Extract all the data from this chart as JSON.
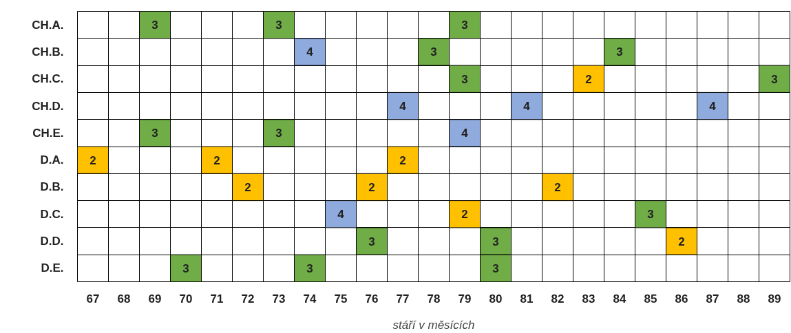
{
  "chart_data": {
    "type": "heatmap",
    "xlabel": "stáří v měsících",
    "categories": [
      "67",
      "68",
      "69",
      "70",
      "71",
      "72",
      "73",
      "74",
      "75",
      "76",
      "77",
      "78",
      "79",
      "80",
      "81",
      "82",
      "83",
      "84",
      "85",
      "86",
      "87",
      "88",
      "89"
    ],
    "y_categories": [
      "CH.A.",
      "CH.B.",
      "CH.C.",
      "CH.D.",
      "CH.E.",
      "D.A.",
      "D.B.",
      "D.C.",
      "D.D.",
      "D.E."
    ],
    "cells": [
      [
        null,
        null,
        3,
        null,
        null,
        null,
        3,
        null,
        null,
        null,
        null,
        null,
        3,
        null,
        null,
        null,
        null,
        null,
        null,
        null,
        null,
        null,
        null
      ],
      [
        null,
        null,
        null,
        null,
        null,
        null,
        null,
        4,
        null,
        null,
        null,
        3,
        null,
        null,
        null,
        null,
        null,
        3,
        null,
        null,
        null,
        null,
        null
      ],
      [
        null,
        null,
        null,
        null,
        null,
        null,
        null,
        null,
        null,
        null,
        null,
        null,
        3,
        null,
        null,
        null,
        2,
        null,
        null,
        null,
        null,
        null,
        3
      ],
      [
        null,
        null,
        null,
        null,
        null,
        null,
        null,
        null,
        null,
        null,
        4,
        null,
        null,
        null,
        4,
        null,
        null,
        null,
        null,
        null,
        4,
        null,
        null
      ],
      [
        null,
        null,
        3,
        null,
        null,
        null,
        3,
        null,
        null,
        null,
        null,
        null,
        4,
        null,
        null,
        null,
        null,
        null,
        null,
        null,
        null,
        null,
        null
      ],
      [
        2,
        null,
        null,
        null,
        2,
        null,
        null,
        null,
        null,
        null,
        2,
        null,
        null,
        null,
        null,
        null,
        null,
        null,
        null,
        null,
        null,
        null,
        null
      ],
      [
        null,
        null,
        null,
        null,
        null,
        2,
        null,
        null,
        null,
        2,
        null,
        null,
        null,
        null,
        null,
        2,
        null,
        null,
        null,
        null,
        null,
        null,
        null
      ],
      [
        null,
        null,
        null,
        null,
        null,
        null,
        null,
        null,
        4,
        null,
        null,
        null,
        2,
        null,
        null,
        null,
        null,
        null,
        3,
        null,
        null,
        null,
        null
      ],
      [
        null,
        null,
        null,
        null,
        null,
        null,
        null,
        null,
        null,
        3,
        null,
        null,
        null,
        3,
        null,
        null,
        null,
        null,
        null,
        2,
        null,
        null,
        null
      ],
      [
        null,
        null,
        null,
        3,
        null,
        null,
        null,
        3,
        null,
        null,
        null,
        null,
        null,
        3,
        null,
        null,
        null,
        null,
        null,
        null,
        null,
        null,
        null
      ]
    ],
    "colors": [
      [
        null,
        null,
        "#70ad47",
        null,
        null,
        null,
        "#70ad47",
        null,
        null,
        null,
        null,
        null,
        "#70ad47",
        null,
        null,
        null,
        null,
        null,
        null,
        null,
        null,
        null,
        null
      ],
      [
        null,
        null,
        null,
        null,
        null,
        null,
        null,
        "#8faadc",
        null,
        null,
        null,
        "#70ad47",
        null,
        null,
        null,
        null,
        null,
        "#70ad47",
        null,
        null,
        null,
        null,
        null
      ],
      [
        null,
        null,
        null,
        null,
        null,
        null,
        null,
        null,
        null,
        null,
        null,
        null,
        "#70ad47",
        null,
        null,
        null,
        "#ffc000",
        null,
        null,
        null,
        null,
        null,
        "#70ad47"
      ],
      [
        null,
        null,
        null,
        null,
        null,
        null,
        null,
        null,
        null,
        null,
        "#8faadc",
        null,
        null,
        null,
        "#8faadc",
        null,
        null,
        null,
        null,
        null,
        "#8faadc",
        null,
        null
      ],
      [
        null,
        null,
        "#70ad47",
        null,
        null,
        null,
        "#70ad47",
        null,
        null,
        null,
        null,
        null,
        "#8faadc",
        null,
        null,
        null,
        null,
        null,
        null,
        null,
        null,
        null,
        null
      ],
      [
        "#ffc000",
        null,
        null,
        null,
        "#ffc000",
        null,
        null,
        null,
        null,
        null,
        "#ffc000",
        null,
        null,
        null,
        null,
        null,
        null,
        null,
        null,
        null,
        null,
        null,
        null
      ],
      [
        null,
        null,
        null,
        null,
        null,
        "#ffc000",
        null,
        null,
        null,
        "#ffc000",
        null,
        null,
        null,
        null,
        null,
        "#ffc000",
        null,
        null,
        null,
        null,
        null,
        null,
        null
      ],
      [
        null,
        null,
        null,
        null,
        null,
        null,
        null,
        null,
        "#8faadc",
        null,
        null,
        null,
        "#ffc000",
        null,
        null,
        null,
        null,
        null,
        "#70ad47",
        null,
        null,
        null,
        null
      ],
      [
        null,
        null,
        null,
        null,
        null,
        null,
        null,
        null,
        null,
        "#70ad47",
        null,
        null,
        null,
        "#70ad47",
        null,
        null,
        null,
        null,
        null,
        "#ffc000",
        null,
        null,
        null
      ],
      [
        null,
        null,
        null,
        "#70ad47",
        null,
        null,
        null,
        "#70ad47",
        null,
        null,
        null,
        null,
        null,
        "#70ad47",
        null,
        null,
        null,
        null,
        null,
        null,
        null,
        null,
        null
      ]
    ],
    "data_labels": true,
    "grid": true
  }
}
